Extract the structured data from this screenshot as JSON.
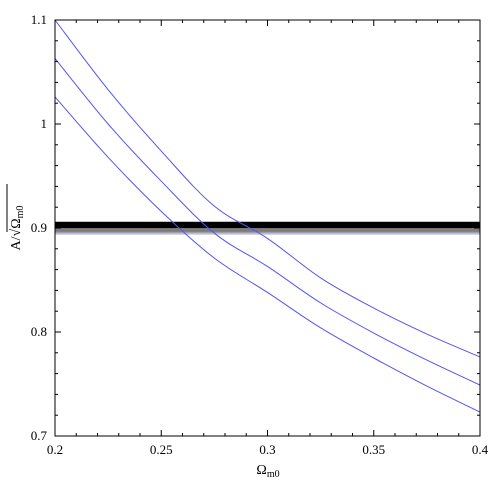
{
  "chart_data": {
    "type": "line",
    "title": "",
    "xlabel": {
      "main": "Ω",
      "sub": "m0"
    },
    "ylabel": {
      "prefix": "A/√",
      "main": "Ω",
      "sub": "m0"
    },
    "xlim": [
      0.2,
      0.4
    ],
    "ylim": [
      0.7,
      1.1
    ],
    "x_ticks": [
      0.2,
      0.25,
      0.3,
      0.35,
      0.4
    ],
    "x_tick_labels": [
      "0.2",
      "0.25",
      "0.3",
      "0.35",
      "0.4"
    ],
    "y_ticks": [
      0.7,
      0.8,
      0.9,
      1.0,
      1.1
    ],
    "y_tick_labels": [
      "0.7",
      "0.8",
      "0.9",
      "1",
      "1.1"
    ],
    "grid": false,
    "legend": "none",
    "curve_color": "#5555ee",
    "x": [
      0.2,
      0.225,
      0.25,
      0.275,
      0.3,
      0.325,
      0.35,
      0.375,
      0.4
    ],
    "series": [
      {
        "values": [
          1.1,
          1.033,
          0.974,
          0.921,
          0.89,
          0.852,
          0.823,
          0.798,
          0.776
        ]
      },
      {
        "values": [
          1.063,
          1.0,
          0.945,
          0.895,
          0.863,
          0.828,
          0.799,
          0.773,
          0.749
        ]
      },
      {
        "values": [
          1.026,
          0.968,
          0.916,
          0.871,
          0.838,
          0.804,
          0.775,
          0.748,
          0.723
        ]
      }
    ],
    "horizontal_bands": [
      {
        "color": "#000000",
        "y_low": 0.9,
        "y_high": 0.906
      },
      {
        "color": "#777777",
        "y_low": 0.8985,
        "y_high": 0.9
      },
      {
        "color": "#996666",
        "y_low": 0.8975,
        "y_high": 0.8985
      },
      {
        "color": "#4a7a6a",
        "y_low": 0.8965,
        "y_high": 0.8975
      },
      {
        "color": "#7788aa",
        "y_low": 0.8955,
        "y_high": 0.8965
      },
      {
        "color": "#aaaaaa",
        "y_low": 0.8945,
        "y_high": 0.8955
      },
      {
        "color": "#cccccc",
        "y_low": 0.8935,
        "y_high": 0.8945
      }
    ]
  }
}
